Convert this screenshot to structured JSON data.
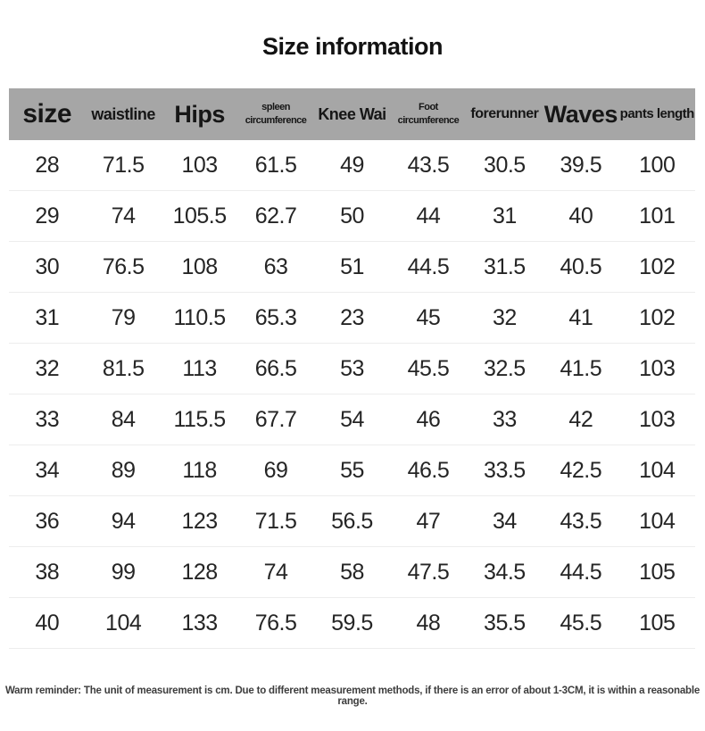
{
  "page": {
    "title": "Size information"
  },
  "table": {
    "columns": [
      {
        "line1": "size"
      },
      {
        "line1": "waistline"
      },
      {
        "line1": "Hips"
      },
      {
        "line1": "spleen",
        "line2": "circumference"
      },
      {
        "line1": "Knee Wai"
      },
      {
        "line1": "Foot",
        "line2": "circumference"
      },
      {
        "line1": "forerunner"
      },
      {
        "line1": "Waves"
      },
      {
        "line1": "pants length"
      }
    ],
    "rows": [
      {
        "cells": [
          "28",
          "71.5",
          "103",
          "61.5",
          "49",
          "43.5",
          "30.5",
          "39.5",
          "100"
        ]
      },
      {
        "cells": [
          "29",
          "74",
          "105.5",
          "62.7",
          "50",
          "44",
          "31",
          "40",
          "101"
        ]
      },
      {
        "cells": [
          "30",
          "76.5",
          "108",
          "63",
          "51",
          "44.5",
          "31.5",
          "40.5",
          "102"
        ]
      },
      {
        "cells": [
          "31",
          "79",
          "110.5",
          "65.3",
          "23",
          "45",
          "32",
          "41",
          "102"
        ]
      },
      {
        "cells": [
          "32",
          "81.5",
          "113",
          "66.5",
          "53",
          "45.5",
          "32.5",
          "41.5",
          "103"
        ]
      },
      {
        "cells": [
          "33",
          "84",
          "115.5",
          "67.7",
          "54",
          "46",
          "33",
          "42",
          "103"
        ]
      },
      {
        "cells": [
          "34",
          "89",
          "118",
          "69",
          "55",
          "46.5",
          "33.5",
          "42.5",
          "104"
        ]
      },
      {
        "cells": [
          "36",
          "94",
          "123",
          "71.5",
          "56.5",
          "47",
          "34",
          "43.5",
          "104"
        ]
      },
      {
        "cells": [
          "38",
          "99",
          "128",
          "74",
          "58",
          "47.5",
          "34.5",
          "44.5",
          "105"
        ]
      },
      {
        "cells": [
          "40",
          "104",
          "133",
          "76.5",
          "59.5",
          "48",
          "35.5",
          "45.5",
          "105"
        ]
      }
    ]
  },
  "footer": {
    "reminder": "Warm reminder: The unit of measurement is cm. Due to different measurement methods, if there is an error of about 1-3CM, it is within a reasonable range."
  },
  "colors": {
    "header_background": "#a6a6a6",
    "header_text": "#161616",
    "body_text": "#252525",
    "row_divider": "#ededed",
    "page_background": "#ffffff"
  },
  "chart_data": {
    "type": "table",
    "title": "Size information",
    "columns": [
      "size",
      "waistline",
      "Hips",
      "spleen circumference",
      "Knee Wai",
      "Foot circumference",
      "forerunner",
      "Waves",
      "pants length"
    ],
    "rows": [
      [
        28,
        71.5,
        103,
        61.5,
        49,
        43.5,
        30.5,
        39.5,
        100
      ],
      [
        29,
        74,
        105.5,
        62.7,
        50,
        44,
        31,
        40,
        101
      ],
      [
        30,
        76.5,
        108,
        63,
        51,
        44.5,
        31.5,
        40.5,
        102
      ],
      [
        31,
        79,
        110.5,
        65.3,
        23,
        45,
        32,
        41,
        102
      ],
      [
        32,
        81.5,
        113,
        66.5,
        53,
        45.5,
        32.5,
        41.5,
        103
      ],
      [
        33,
        84,
        115.5,
        67.7,
        54,
        46,
        33,
        42,
        103
      ],
      [
        34,
        89,
        118,
        69,
        55,
        46.5,
        33.5,
        42.5,
        104
      ],
      [
        36,
        94,
        123,
        71.5,
        56.5,
        47,
        34,
        43.5,
        104
      ],
      [
        38,
        99,
        128,
        74,
        58,
        47.5,
        34.5,
        44.5,
        105
      ],
      [
        40,
        104,
        133,
        76.5,
        59.5,
        48,
        35.5,
        45.5,
        105
      ]
    ],
    "unit": "cm",
    "note": "Warm reminder: The unit of measurement is cm. Due to different measurement methods, if there is an error of about 1-3CM, it is within a reasonable range."
  }
}
